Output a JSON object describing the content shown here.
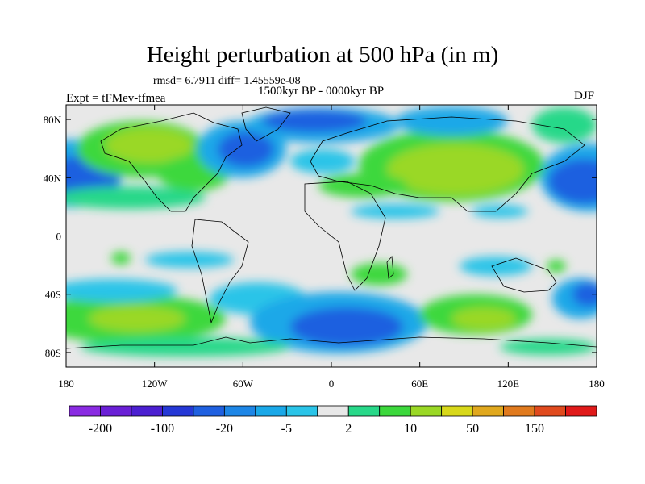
{
  "title": "Height perturbation at 500 hPa (in m)",
  "stats": "rmsd= 6.7911 diff= 1.45559e-08",
  "period": "1500kyr BP - 0000kyr BP",
  "experiment": "Expt = tFMev-tfmea",
  "season": "DJF",
  "map": {
    "lon_range": [
      -180,
      180
    ],
    "lat_range": [
      -90,
      90
    ],
    "x_ticks": [
      {
        "lon": -180,
        "label": "180"
      },
      {
        "lon": -120,
        "label": "120W"
      },
      {
        "lon": -60,
        "label": "60W"
      },
      {
        "lon": 0,
        "label": "0"
      },
      {
        "lon": 60,
        "label": "60E"
      },
      {
        "lon": 120,
        "label": "120E"
      },
      {
        "lon": 180,
        "label": "180"
      }
    ],
    "y_ticks": [
      {
        "lat": 80,
        "label": "80N"
      },
      {
        "lat": 40,
        "label": "40N"
      },
      {
        "lat": 0,
        "label": "0"
      },
      {
        "lat": -40,
        "label": "40S"
      },
      {
        "lat": -80,
        "label": "80S"
      }
    ]
  },
  "colorbar": {
    "colors": [
      "#8a2be2",
      "#6a1fd6",
      "#4b1fd1",
      "#2538d6",
      "#1f60e0",
      "#1d86e6",
      "#1aa8e8",
      "#2ac4e8",
      "#e8e8e8",
      "#28d889",
      "#3cd83c",
      "#9ad825",
      "#d8d81a",
      "#e0a81e",
      "#e07a1e",
      "#e04a1e",
      "#e01a1a"
    ],
    "labels": [
      "-200",
      "-100",
      "-20",
      "-5",
      "2",
      "10",
      "50",
      "150"
    ]
  }
}
